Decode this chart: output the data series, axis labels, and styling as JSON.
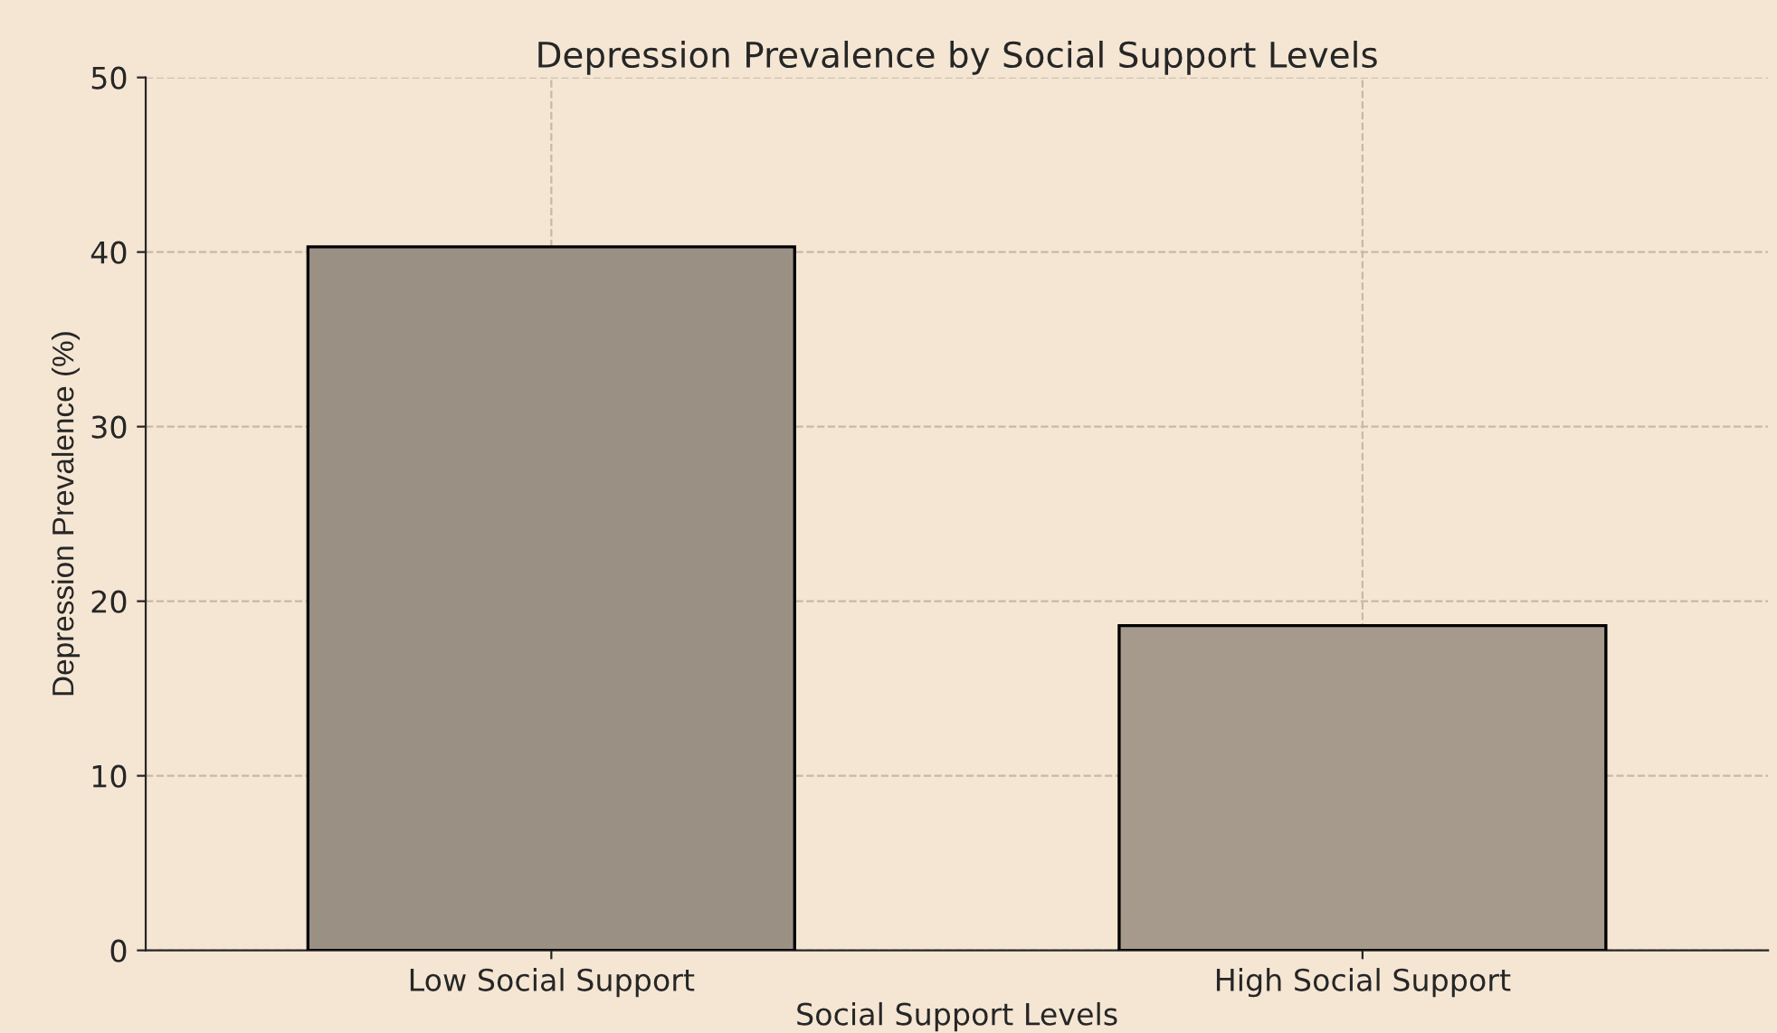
{
  "chart_data": {
    "type": "bar",
    "title": "Depression Prevalence by Social Support Levels",
    "xlabel": "Social Support Levels",
    "ylabel": "Depression Prevalence (%)",
    "categories": [
      "Low Social Support",
      "High Social Support"
    ],
    "values": [
      40.3,
      18.6
    ],
    "colors": [
      "#9a9084",
      "#a69a8c"
    ],
    "ylim": [
      0,
      50
    ],
    "yticks": [
      0,
      10,
      20,
      30,
      40,
      50
    ],
    "grid": true
  }
}
